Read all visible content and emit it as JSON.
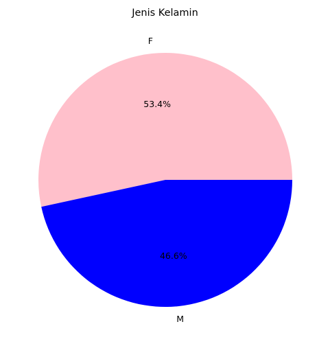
{
  "chart_data": {
    "type": "pie",
    "title": "Jenis Kelamin",
    "slices": [
      {
        "label": "F",
        "value": 53.4,
        "pct_label": "53.4%",
        "color": "#ffc0cb"
      },
      {
        "label": "M",
        "value": 46.6,
        "pct_label": "46.6%",
        "color": "#0000ff"
      }
    ],
    "start_angle_deg": 0,
    "direction": "counterclockwise",
    "legend": "none"
  }
}
